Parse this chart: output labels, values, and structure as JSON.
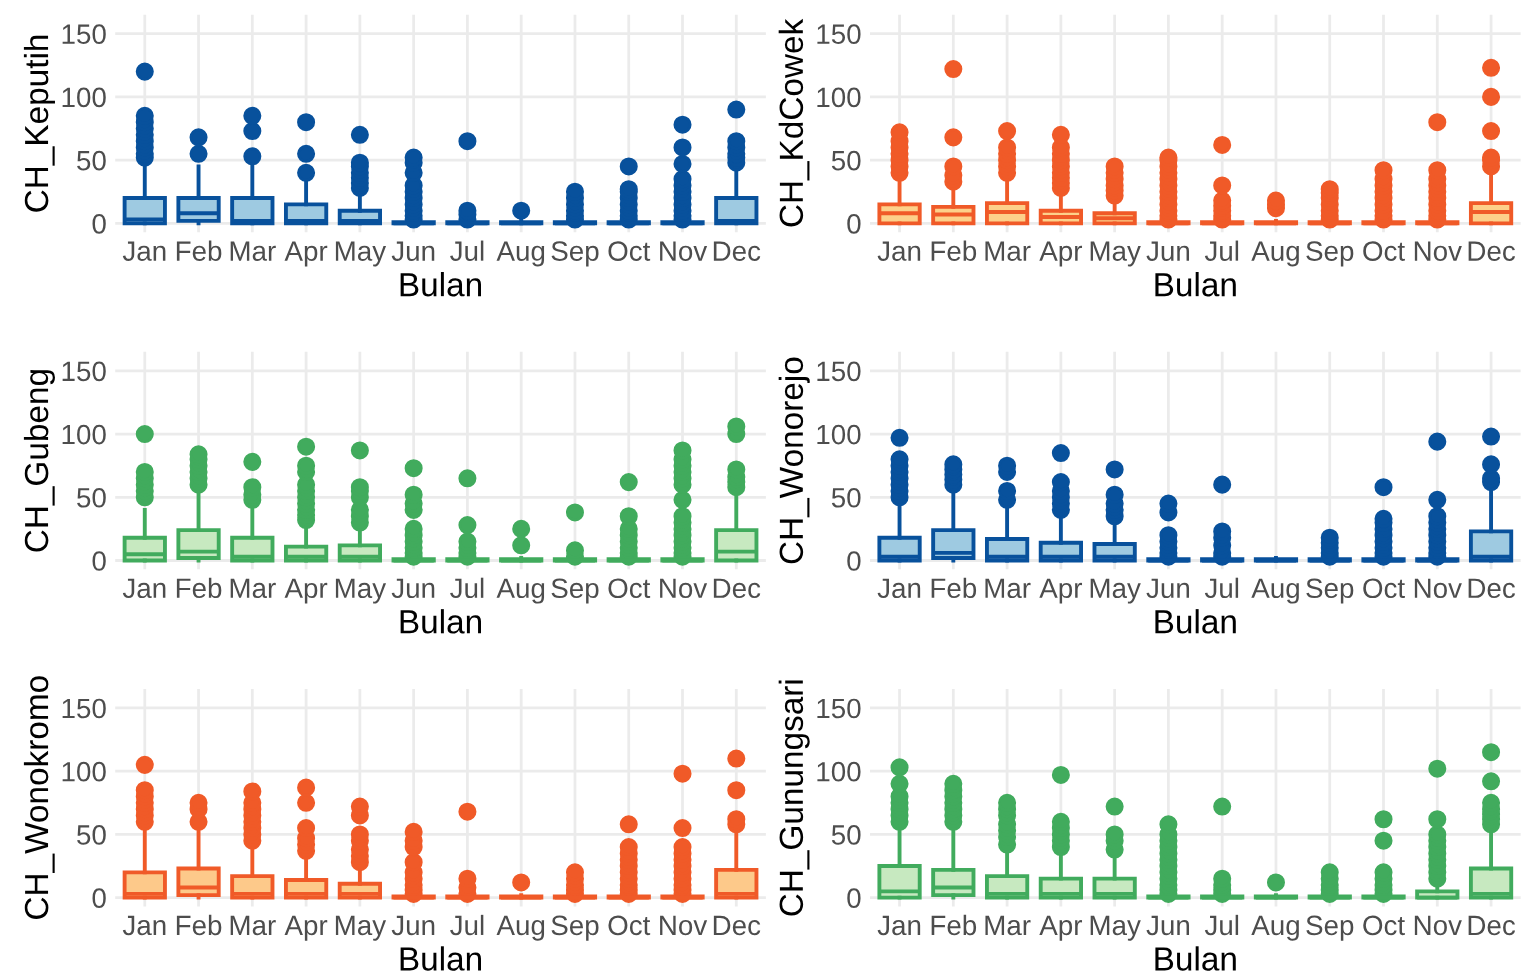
{
  "chart_data": [
    {
      "type": "box",
      "xlabel": "Bulan",
      "ylabel": "CH_Keputih",
      "categories": [
        "Jan",
        "Feb",
        "Mar",
        "Apr",
        "May",
        "Jun",
        "Jul",
        "Aug",
        "Sep",
        "Oct",
        "Nov",
        "Dec"
      ],
      "ylim": [
        -7,
        165
      ],
      "yticks": [
        0,
        50,
        100,
        150
      ],
      "grid": true,
      "marker": "circle",
      "series": [
        {
          "color": "#08519c",
          "colors": [
            "#9ecae1",
            "#9ecae1",
            "#9ecae1",
            "#9ecae1",
            "#9ecae1",
            "#9ecae1",
            "#9ecae1",
            "#9ecae1",
            "#9ecae1",
            "#9ecae1",
            "#9ecae1",
            "#9ecae1"
          ],
          "boxes": [
            {
              "low": 0,
              "q1": 0,
              "median": 3,
              "q3": 20,
              "high": 50,
              "outliers": [
                52,
                55,
                60,
                65,
                70,
                75,
                80,
                85,
                120
              ]
            },
            {
              "low": 0,
              "q1": 2,
              "median": 8,
              "q3": 20,
              "high": 45,
              "outliers": [
                55,
                68
              ]
            },
            {
              "low": 0,
              "q1": 0,
              "median": 2,
              "q3": 20,
              "high": 48,
              "outliers": [
                53,
                73,
                85
              ]
            },
            {
              "low": 0,
              "q1": 0,
              "median": 2,
              "q3": 15,
              "high": 35,
              "outliers": [
                40,
                55,
                80
              ]
            },
            {
              "low": 0,
              "q1": 0,
              "median": 2,
              "q3": 10,
              "high": 25,
              "outliers": [
                28,
                32,
                36,
                40,
                45,
                48,
                70
              ]
            },
            {
              "low": 0,
              "q1": 0,
              "median": 0,
              "q3": 1,
              "high": 2,
              "outliers": [
                3,
                6,
                10,
                15,
                20,
                25,
                30,
                40,
                48,
                52
              ]
            },
            {
              "low": 0,
              "q1": 0,
              "median": 0,
              "q3": 1,
              "high": 2,
              "outliers": [
                3,
                7,
                10,
                65
              ]
            },
            {
              "low": 0,
              "q1": 0,
              "median": 0,
              "q3": 1,
              "high": 2,
              "outliers": [
                10
              ]
            },
            {
              "low": 0,
              "q1": 0,
              "median": 0,
              "q3": 1,
              "high": 2,
              "outliers": [
                3,
                6,
                10,
                15,
                20,
                25
              ]
            },
            {
              "low": 0,
              "q1": 0,
              "median": 0,
              "q3": 1,
              "high": 2,
              "outliers": [
                3,
                6,
                10,
                15,
                20,
                25,
                27,
                45
              ]
            },
            {
              "low": 0,
              "q1": 0,
              "median": 0,
              "q3": 1,
              "high": 2,
              "outliers": [
                3,
                6,
                10,
                15,
                20,
                25,
                30,
                35,
                47,
                60,
                78
              ]
            },
            {
              "low": 0,
              "q1": 0,
              "median": 2,
              "q3": 20,
              "high": 45,
              "outliers": [
                48,
                52,
                55,
                60,
                65,
                90
              ]
            }
          ]
        }
      ]
    },
    {
      "type": "box",
      "xlabel": "Bulan",
      "ylabel": "CH_KdCowek",
      "categories": [
        "Jan",
        "Feb",
        "Mar",
        "Apr",
        "May",
        "Jun",
        "Jul",
        "Aug",
        "Sep",
        "Oct",
        "Nov",
        "Dec"
      ],
      "ylim": [
        -7,
        165
      ],
      "yticks": [
        0,
        50,
        100,
        150
      ],
      "grid": true,
      "marker": "circle",
      "series": [
        {
          "color": "#f05a28",
          "colors": [
            "#fdd08a",
            "#fdd08a",
            "#fdd08a",
            "#fdd08a",
            "#fdd08a",
            "#fdd08a",
            "#fdd08a",
            "#fdd08a",
            "#fdd08a",
            "#fdd08a",
            "#fdd08a",
            "#fdd08a"
          ],
          "boxes": [
            {
              "low": 0,
              "q1": 0,
              "median": 8,
              "q3": 15,
              "high": 35,
              "outliers": [
                40,
                45,
                50,
                55,
                60,
                65,
                72
              ]
            },
            {
              "low": 0,
              "q1": 0,
              "median": 7,
              "q3": 13,
              "high": 30,
              "outliers": [
                33,
                38,
                45,
                68,
                122
              ]
            },
            {
              "low": 0,
              "q1": 0,
              "median": 9,
              "q3": 16,
              "high": 38,
              "outliers": [
                40,
                45,
                50,
                55,
                60,
                73
              ]
            },
            {
              "low": 0,
              "q1": 0,
              "median": 5,
              "q3": 10,
              "high": 25,
              "outliers": [
                28,
                32,
                36,
                40,
                45,
                50,
                55,
                60,
                70
              ]
            },
            {
              "low": 0,
              "q1": 0,
              "median": 4,
              "q3": 8,
              "high": 20,
              "outliers": [
                22,
                26,
                30,
                35,
                40,
                45
              ]
            },
            {
              "low": 0,
              "q1": 0,
              "median": 0,
              "q3": 1,
              "high": 2,
              "outliers": [
                3,
                6,
                10,
                15,
                20,
                25,
                30,
                35,
                40,
                45,
                50,
                52
              ]
            },
            {
              "low": 0,
              "q1": 0,
              "median": 0,
              "q3": 1,
              "high": 2,
              "outliers": [
                3,
                6,
                10,
                14,
                18,
                30,
                62
              ]
            },
            {
              "low": 0,
              "q1": 0,
              "median": 0,
              "q3": 1,
              "high": 2,
              "outliers": [
                12,
                15,
                18
              ]
            },
            {
              "low": 0,
              "q1": 0,
              "median": 0,
              "q3": 1,
              "high": 2,
              "outliers": [
                3,
                6,
                10,
                15,
                20,
                24,
                27
              ]
            },
            {
              "low": 0,
              "q1": 0,
              "median": 0,
              "q3": 1,
              "high": 2,
              "outliers": [
                3,
                6,
                10,
                15,
                20,
                25,
                30,
                35,
                42
              ]
            },
            {
              "low": 0,
              "q1": 0,
              "median": 0,
              "q3": 1,
              "high": 2,
              "outliers": [
                3,
                6,
                10,
                15,
                20,
                25,
                30,
                35,
                42,
                80
              ]
            },
            {
              "low": 0,
              "q1": 0,
              "median": 9,
              "q3": 16,
              "high": 40,
              "outliers": [
                45,
                50,
                52,
                73,
                100,
                123
              ]
            }
          ]
        }
      ]
    },
    {
      "type": "box",
      "xlabel": "Bulan",
      "ylabel": "CH_Gubeng",
      "categories": [
        "Jan",
        "Feb",
        "Mar",
        "Apr",
        "May",
        "Jun",
        "Jul",
        "Aug",
        "Sep",
        "Oct",
        "Nov",
        "Dec"
      ],
      "ylim": [
        -7,
        165
      ],
      "yticks": [
        0,
        50,
        100,
        150
      ],
      "grid": true,
      "marker": "circle",
      "series": [
        {
          "color": "#41ab5d",
          "colors": [
            "#c7e9c0",
            "#c7e9c0",
            "#c7e9c0",
            "#c7e9c0",
            "#c7e9c0",
            "#c7e9c0",
            "#c7e9c0",
            "#c7e9c0",
            "#c7e9c0",
            "#c7e9c0",
            "#c7e9c0",
            "#c7e9c0"
          ],
          "boxes": [
            {
              "low": 0,
              "q1": 0,
              "median": 5,
              "q3": 18,
              "high": 40,
              "outliers": [
                50,
                55,
                60,
                65,
                70,
                100
              ]
            },
            {
              "low": 0,
              "q1": 2,
              "median": 7,
              "q3": 24,
              "high": 55,
              "outliers": [
                60,
                65,
                70,
                75,
                80,
                84
              ]
            },
            {
              "low": 0,
              "q1": 0,
              "median": 3,
              "q3": 18,
              "high": 45,
              "outliers": [
                48,
                52,
                58,
                78
              ]
            },
            {
              "low": 0,
              "q1": 0,
              "median": 3,
              "q3": 11,
              "high": 28,
              "outliers": [
                32,
                36,
                40,
                45,
                50,
                55,
                60,
                70,
                75,
                90
              ]
            },
            {
              "low": 0,
              "q1": 0,
              "median": 3,
              "q3": 12,
              "high": 28,
              "outliers": [
                30,
                35,
                40,
                50,
                55,
                58,
                87
              ]
            },
            {
              "low": 0,
              "q1": 0,
              "median": 0,
              "q3": 1,
              "high": 2,
              "outliers": [
                3,
                6,
                10,
                15,
                20,
                25,
                40,
                45,
                52,
                73
              ]
            },
            {
              "low": 0,
              "q1": 0,
              "median": 0,
              "q3": 1,
              "high": 2,
              "outliers": [
                3,
                6,
                10,
                15,
                28,
                65
              ]
            },
            {
              "low": 0,
              "q1": 0,
              "median": 0,
              "q3": 1,
              "high": 2,
              "outliers": [
                12,
                25
              ]
            },
            {
              "low": 0,
              "q1": 0,
              "median": 0,
              "q3": 1,
              "high": 2,
              "outliers": [
                3,
                8,
                38
              ]
            },
            {
              "low": 0,
              "q1": 0,
              "median": 0,
              "q3": 1,
              "high": 2,
              "outliers": [
                3,
                6,
                10,
                15,
                20,
                25,
                35,
                62
              ]
            },
            {
              "low": 0,
              "q1": 0,
              "median": 0,
              "q3": 1,
              "high": 2,
              "outliers": [
                3,
                6,
                10,
                15,
                20,
                25,
                30,
                35,
                48,
                60,
                65,
                70,
                75,
                80,
                87
              ]
            },
            {
              "low": 0,
              "q1": 0,
              "median": 7,
              "q3": 24,
              "high": 55,
              "outliers": [
                58,
                62,
                66,
                72,
                100,
                106
              ]
            }
          ]
        }
      ]
    },
    {
      "type": "box",
      "xlabel": "Bulan",
      "ylabel": "CH_Wonorejo",
      "categories": [
        "Jan",
        "Feb",
        "Mar",
        "Apr",
        "May",
        "Jun",
        "Jul",
        "Aug",
        "Sep",
        "Oct",
        "Nov",
        "Dec"
      ],
      "ylim": [
        -7,
        165
      ],
      "yticks": [
        0,
        50,
        100,
        150
      ],
      "grid": true,
      "marker": "circle",
      "series": [
        {
          "color": "#08519c",
          "colors": [
            "#9ecae1",
            "#9ecae1",
            "#9ecae1",
            "#9ecae1",
            "#9ecae1",
            "#9ecae1",
            "#9ecae1",
            "#9ecae1",
            "#9ecae1",
            "#9ecae1",
            "#9ecae1",
            "#9ecae1"
          ],
          "boxes": [
            {
              "low": 0,
              "q1": 0,
              "median": 3,
              "q3": 18,
              "high": 45,
              "outliers": [
                50,
                55,
                60,
                65,
                70,
                75,
                80,
                97
              ]
            },
            {
              "low": 0,
              "q1": 2,
              "median": 6,
              "q3": 24,
              "high": 55,
              "outliers": [
                60,
                64,
                68,
                72,
                76
              ]
            },
            {
              "low": 0,
              "q1": 0,
              "median": 3,
              "q3": 17,
              "high": 42,
              "outliers": [
                48,
                55,
                70,
                75
              ]
            },
            {
              "low": 0,
              "q1": 0,
              "median": 3,
              "q3": 14,
              "high": 35,
              "outliers": [
                40,
                45,
                50,
                55,
                62,
                85
              ]
            },
            {
              "low": 0,
              "q1": 0,
              "median": 3,
              "q3": 13,
              "high": 30,
              "outliers": [
                35,
                40,
                45,
                52,
                72
              ]
            },
            {
              "low": 0,
              "q1": 0,
              "median": 0,
              "q3": 1,
              "high": 2,
              "outliers": [
                3,
                6,
                10,
                15,
                20,
                38,
                45
              ]
            },
            {
              "low": 0,
              "q1": 0,
              "median": 0,
              "q3": 1,
              "high": 2,
              "outliers": [
                3,
                6,
                12,
                18,
                23,
                60
              ]
            },
            {
              "low": 0,
              "q1": 0,
              "median": 0,
              "q3": 1,
              "high": 2
            },
            {
              "low": 0,
              "q1": 0,
              "median": 0,
              "q3": 1,
              "high": 2,
              "outliers": [
                3,
                6,
                10,
                14,
                18
              ]
            },
            {
              "low": 0,
              "q1": 0,
              "median": 0,
              "q3": 1,
              "high": 2,
              "outliers": [
                3,
                6,
                10,
                15,
                20,
                25,
                30,
                33,
                58
              ]
            },
            {
              "low": 0,
              "q1": 0,
              "median": 0,
              "q3": 1,
              "high": 2,
              "outliers": [
                3,
                6,
                10,
                15,
                20,
                25,
                30,
                35,
                48,
                94
              ]
            },
            {
              "low": 0,
              "q1": 0,
              "median": 3,
              "q3": 23,
              "high": 55,
              "outliers": [
                62,
                65,
                76,
                98
              ]
            }
          ]
        }
      ]
    },
    {
      "type": "box",
      "xlabel": "Bulan",
      "ylabel": "CH_Wonokromo",
      "categories": [
        "Jan",
        "Feb",
        "Mar",
        "Apr",
        "May",
        "Jun",
        "Jul",
        "Aug",
        "Sep",
        "Oct",
        "Nov",
        "Dec"
      ],
      "ylim": [
        -7,
        165
      ],
      "yticks": [
        0,
        50,
        100,
        150
      ],
      "grid": true,
      "marker": "circle",
      "series": [
        {
          "color": "#f05a28",
          "colors": [
            "#fdc98a",
            "#fdc98a",
            "#fdc98a",
            "#fdc98a",
            "#fdc98a",
            "#fdc98a",
            "#fdc98a",
            "#fdc98a",
            "#fdc98a",
            "#fdc98a",
            "#fdc98a",
            "#fdc98a"
          ],
          "boxes": [
            {
              "low": 0,
              "q1": 0,
              "median": 3,
              "q3": 20,
              "high": 55,
              "outliers": [
                60,
                65,
                70,
                75,
                80,
                85,
                105
              ]
            },
            {
              "low": 0,
              "q1": 2,
              "median": 8,
              "q3": 23,
              "high": 55,
              "outliers": [
                60,
                70,
                75
              ]
            },
            {
              "low": 0,
              "q1": 0,
              "median": 3,
              "q3": 17,
              "high": 40,
              "outliers": [
                45,
                50,
                55,
                60,
                65,
                70,
                75,
                84
              ]
            },
            {
              "low": 0,
              "q1": 0,
              "median": 3,
              "q3": 14,
              "high": 33,
              "outliers": [
                37,
                42,
                47,
                55,
                75,
                87
              ]
            },
            {
              "low": 0,
              "q1": 0,
              "median": 3,
              "q3": 11,
              "high": 25,
              "outliers": [
                28,
                33,
                38,
                45,
                50,
                65,
                72
              ]
            },
            {
              "low": 0,
              "q1": 0,
              "median": 0,
              "q3": 1,
              "high": 2,
              "outliers": [
                3,
                6,
                10,
                15,
                20,
                28,
                40,
                45,
                52
              ]
            },
            {
              "low": 0,
              "q1": 0,
              "median": 0,
              "q3": 1,
              "high": 2,
              "outliers": [
                3,
                8,
                15,
                68
              ]
            },
            {
              "low": 0,
              "q1": 0,
              "median": 0,
              "q3": 1,
              "high": 2,
              "outliers": [
                12
              ]
            },
            {
              "low": 0,
              "q1": 0,
              "median": 0,
              "q3": 1,
              "high": 2,
              "outliers": [
                3,
                6,
                10,
                15,
                20
              ]
            },
            {
              "low": 0,
              "q1": 0,
              "median": 0,
              "q3": 1,
              "high": 2,
              "outliers": [
                3,
                6,
                10,
                15,
                20,
                25,
                30,
                35,
                40,
                58
              ]
            },
            {
              "low": 0,
              "q1": 0,
              "median": 0,
              "q3": 1,
              "high": 2,
              "outliers": [
                3,
                6,
                10,
                15,
                20,
                25,
                30,
                35,
                40,
                55,
                98
              ]
            },
            {
              "low": 0,
              "q1": 0,
              "median": 3,
              "q3": 22,
              "high": 55,
              "outliers": [
                58,
                62,
                85,
                110
              ]
            }
          ]
        }
      ]
    },
    {
      "type": "box",
      "xlabel": "Bulan",
      "ylabel": "CH_Gunungsari",
      "categories": [
        "Jan",
        "Feb",
        "Mar",
        "Apr",
        "May",
        "Jun",
        "Jul",
        "Aug",
        "Sep",
        "Oct",
        "Nov",
        "Dec"
      ],
      "ylim": [
        -7,
        165
      ],
      "yticks": [
        0,
        50,
        100,
        150
      ],
      "grid": true,
      "marker": "circle",
      "series": [
        {
          "color": "#41ab5d",
          "colors": [
            "#c7e9c0",
            "#c7e9c0",
            "#c7e9c0",
            "#c7e9c0",
            "#c7e9c0",
            "#c7e9c0",
            "#c7e9c0",
            "#c7e9c0",
            "#c7e9c0",
            "#c7e9c0",
            "#c7e9c0",
            "#c7e9c0"
          ],
          "boxes": [
            {
              "low": 0,
              "q1": 0,
              "median": 5,
              "q3": 25,
              "high": 55,
              "outliers": [
                60,
                65,
                70,
                75,
                80,
                90,
                103
              ]
            },
            {
              "low": 0,
              "q1": 2,
              "median": 8,
              "q3": 22,
              "high": 55,
              "outliers": [
                60,
                65,
                70,
                75,
                80,
                85,
                90
              ]
            },
            {
              "low": 0,
              "q1": 0,
              "median": 3,
              "q3": 17,
              "high": 40,
              "outliers": [
                42,
                48,
                53,
                58,
                65,
                70,
                75
              ]
            },
            {
              "low": 0,
              "q1": 0,
              "median": 3,
              "q3": 15,
              "high": 35,
              "outliers": [
                40,
                45,
                50,
                55,
                60,
                97
              ]
            },
            {
              "low": 0,
              "q1": 0,
              "median": 3,
              "q3": 15,
              "high": 35,
              "outliers": [
                38,
                45,
                50,
                72
              ]
            },
            {
              "low": 0,
              "q1": 0,
              "median": 0,
              "q3": 1,
              "high": 2,
              "outliers": [
                3,
                6,
                10,
                15,
                20,
                25,
                30,
                35,
                40,
                45,
                50,
                58
              ]
            },
            {
              "low": 0,
              "q1": 0,
              "median": 0,
              "q3": 1,
              "high": 2,
              "outliers": [
                3,
                6,
                10,
                15,
                72
              ]
            },
            {
              "low": 0,
              "q1": 0,
              "median": 0,
              "q3": 1,
              "high": 2,
              "outliers": [
                12
              ]
            },
            {
              "low": 0,
              "q1": 0,
              "median": 0,
              "q3": 1,
              "high": 2,
              "outliers": [
                3,
                6,
                10,
                15,
                20
              ]
            },
            {
              "low": 0,
              "q1": 0,
              "median": 0,
              "q3": 1,
              "high": 2,
              "outliers": [
                3,
                6,
                10,
                15,
                20,
                45,
                62
              ]
            },
            {
              "low": 0,
              "q1": 0,
              "median": 0,
              "q3": 5,
              "high": 12,
              "outliers": [
                15,
                20,
                25,
                30,
                35,
                40,
                45,
                50,
                62,
                102
              ]
            },
            {
              "low": 0,
              "q1": 0,
              "median": 3,
              "q3": 23,
              "high": 50,
              "outliers": [
                58,
                62,
                66,
                70,
                75,
                92,
                115
              ]
            }
          ]
        }
      ]
    }
  ]
}
